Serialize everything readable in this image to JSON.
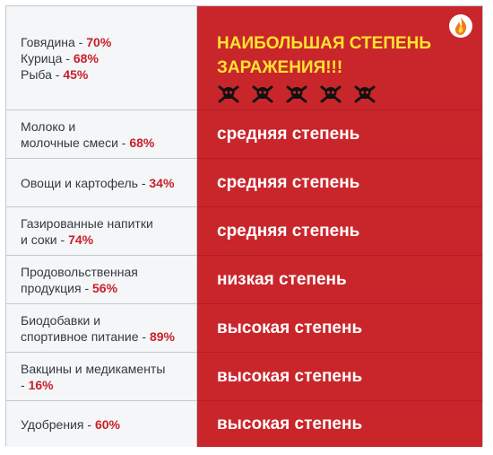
{
  "rows": [
    {
      "items": [
        {
          "name": "Говядина",
          "sep": " - ",
          "pct": "70%"
        },
        {
          "name": "Курица",
          "sep": " - ",
          "pct": "68%"
        },
        {
          "name": "Рыба",
          "sep": " - ",
          "pct": "45%"
        }
      ],
      "headline_line1": "НАИБОЛЬШАЯ СТЕПЕНЬ",
      "headline_line2": "ЗАРАЖЕНИЯ!!!",
      "skull_count": 5
    },
    {
      "line1": "Молоко и",
      "line2": "молочные смеси",
      "sep": " - ",
      "pct": "68%",
      "level": "средняя степень"
    },
    {
      "line1": "Овощи и картофель",
      "sep": " - ",
      "pct": "34%",
      "level": "средняя степень"
    },
    {
      "line1": "Газированные напитки",
      "line2": "и соки",
      "sep": " - ",
      "pct": "74%",
      "level": "средняя степень"
    },
    {
      "line1": "Продовольственная",
      "line2": "продукция",
      "sep": " - ",
      "pct": "56%",
      "level": "низкая степень"
    },
    {
      "line1": "Биодобавки и",
      "line2": "спортивное питание",
      "sep": " - ",
      "pct": "89%",
      "level": "высокая степень"
    },
    {
      "line1": "Вакцины и медикаменты",
      "line2": "",
      "sep": "- ",
      "pct": "16%",
      "level": "высокая степень"
    },
    {
      "line1": "Удобрения",
      "sep": " - ",
      "pct": "60%",
      "level": "высокая степень"
    }
  ],
  "colors": {
    "red": "#c9262c",
    "yellow": "#ffe230",
    "percent": "#c8202a"
  },
  "icons": {
    "skull": "skull-crossbones-icon",
    "logo": "fire-logo-icon"
  }
}
